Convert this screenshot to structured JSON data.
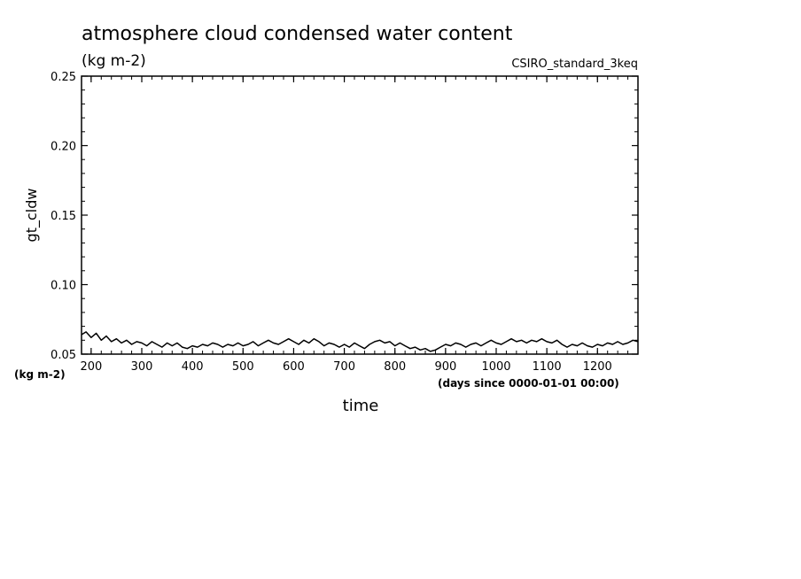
{
  "chart_data": {
    "type": "line",
    "title": "atmosphere cloud condensed water content",
    "subtitle": "(kg m-2)",
    "dataset_label": "CSIRO_standard_3keq",
    "ylabel": "gt_cldw",
    "yunits": "(kg m-2)",
    "xlabel": "time",
    "xunits": "(days since 0000-01-01 00:00)",
    "xlim": [
      181,
      1280
    ],
    "ylim": [
      0.05,
      0.25
    ],
    "xticks": [
      200,
      300,
      400,
      500,
      600,
      700,
      800,
      900,
      1000,
      1100,
      1200
    ],
    "xtick_labels": [
      "200",
      "300",
      "400",
      "500",
      "600",
      "700",
      "800",
      "900",
      "1000",
      "1100",
      "1200"
    ],
    "yticks": [
      0.05,
      0.1,
      0.15,
      0.2,
      0.25
    ],
    "ytick_labels": [
      "0.05",
      "0.10",
      "0.15",
      "0.20",
      "0.25"
    ],
    "grid": false,
    "series": [
      {
        "color": "#000000",
        "x": [
          181,
          190,
          200,
          210,
          220,
          230,
          240,
          250,
          260,
          270,
          280,
          290,
          300,
          310,
          320,
          330,
          340,
          350,
          360,
          370,
          380,
          390,
          400,
          410,
          420,
          430,
          440,
          450,
          460,
          470,
          480,
          490,
          500,
          510,
          520,
          530,
          540,
          550,
          560,
          570,
          580,
          590,
          600,
          610,
          620,
          630,
          640,
          650,
          660,
          670,
          680,
          690,
          700,
          710,
          720,
          730,
          740,
          750,
          760,
          770,
          780,
          790,
          800,
          810,
          820,
          830,
          840,
          850,
          860,
          870,
          880,
          890,
          900,
          910,
          920,
          930,
          940,
          950,
          960,
          970,
          980,
          990,
          1000,
          1010,
          1020,
          1030,
          1040,
          1050,
          1060,
          1070,
          1080,
          1090,
          1100,
          1110,
          1120,
          1130,
          1140,
          1150,
          1160,
          1170,
          1180,
          1190,
          1200,
          1210,
          1220,
          1230,
          1240,
          1250,
          1260,
          1270,
          1280
        ],
        "y": [
          0.064,
          0.066,
          0.062,
          0.065,
          0.06,
          0.063,
          0.059,
          0.061,
          0.058,
          0.06,
          0.057,
          0.059,
          0.058,
          0.056,
          0.059,
          0.057,
          0.055,
          0.058,
          0.056,
          0.058,
          0.055,
          0.054,
          0.056,
          0.055,
          0.057,
          0.056,
          0.058,
          0.057,
          0.055,
          0.057,
          0.056,
          0.058,
          0.056,
          0.057,
          0.059,
          0.056,
          0.058,
          0.06,
          0.058,
          0.057,
          0.059,
          0.061,
          0.059,
          0.057,
          0.06,
          0.058,
          0.061,
          0.059,
          0.056,
          0.058,
          0.057,
          0.055,
          0.057,
          0.055,
          0.058,
          0.056,
          0.054,
          0.057,
          0.059,
          0.06,
          0.058,
          0.059,
          0.056,
          0.058,
          0.056,
          0.054,
          0.055,
          0.053,
          0.054,
          0.052,
          0.053,
          0.055,
          0.057,
          0.056,
          0.058,
          0.057,
          0.055,
          0.057,
          0.058,
          0.056,
          0.058,
          0.06,
          0.058,
          0.057,
          0.059,
          0.061,
          0.059,
          0.06,
          0.058,
          0.06,
          0.059,
          0.061,
          0.059,
          0.058,
          0.06,
          0.057,
          0.055,
          0.057,
          0.056,
          0.058,
          0.056,
          0.055,
          0.057,
          0.056,
          0.058,
          0.057,
          0.059,
          0.057,
          0.058,
          0.06,
          0.059
        ]
      }
    ]
  }
}
